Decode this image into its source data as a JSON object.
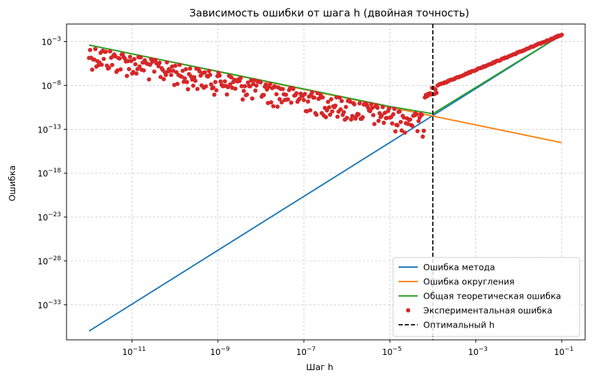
{
  "chart_data": {
    "type": "line",
    "title": "Зависимость ошибки от шага h (двойная точность)",
    "xlabel": "Шаг h",
    "ylabel": "Ошибка",
    "x_scale": "log",
    "y_scale": "log",
    "xlim": [
      3e-13,
      0.35
    ],
    "ylim": [
      1e-37,
      0.1
    ],
    "x_ticks": [
      {
        "value": 1e-11,
        "base": "10",
        "exp": "−11"
      },
      {
        "value": 1e-09,
        "base": "10",
        "exp": "−9"
      },
      {
        "value": 1e-07,
        "base": "10",
        "exp": "−7"
      },
      {
        "value": 1e-05,
        "base": "10",
        "exp": "−5"
      },
      {
        "value": 0.001,
        "base": "10",
        "exp": "−3"
      },
      {
        "value": 0.1,
        "base": "10",
        "exp": "−1"
      }
    ],
    "y_ticks": [
      {
        "value": 0.001,
        "base": "10",
        "exp": "−3"
      },
      {
        "value": 1e-08,
        "base": "10",
        "exp": "−8"
      },
      {
        "value": 1e-13,
        "base": "10",
        "exp": "−13"
      },
      {
        "value": 1e-18,
        "base": "10",
        "exp": "−18"
      },
      {
        "value": 1e-23,
        "base": "10",
        "exp": "−23"
      },
      {
        "value": 1e-28,
        "base": "10",
        "exp": "−28"
      },
      {
        "value": 1e-33,
        "base": "10",
        "exp": "−33"
      }
    ],
    "grid": true,
    "legend_position": "lower-right",
    "series": [
      {
        "name": "Ошибка метода",
        "kind": "line",
        "color": "#1f77b4",
        "x": [
          1e-12,
          0.1
        ],
        "y": [
          1e-36,
          0.006
        ]
      },
      {
        "name": "Ошибка округления",
        "kind": "line",
        "color": "#ff7f0e",
        "x": [
          1e-12,
          0.1
        ],
        "y": [
          0.0004,
          3e-15
        ]
      },
      {
        "name": "Общая теоретическая ошибка",
        "kind": "line",
        "color": "#2ca02c",
        "x": [
          1e-12,
          1e-05,
          0.0001,
          0.001,
          0.01,
          0.1
        ],
        "y": [
          0.0004,
          4e-11,
          6e-12,
          6e-09,
          6e-06,
          0.006
        ]
      },
      {
        "name": "Экспериментальная ошибка",
        "kind": "scatter",
        "color": "#d62728",
        "x_range": [
          1e-12,
          0.1
        ],
        "count": 450
      },
      {
        "name": "Оптимальный h",
        "kind": "vline",
        "color": "#000000",
        "x": 0.0001
      }
    ]
  }
}
